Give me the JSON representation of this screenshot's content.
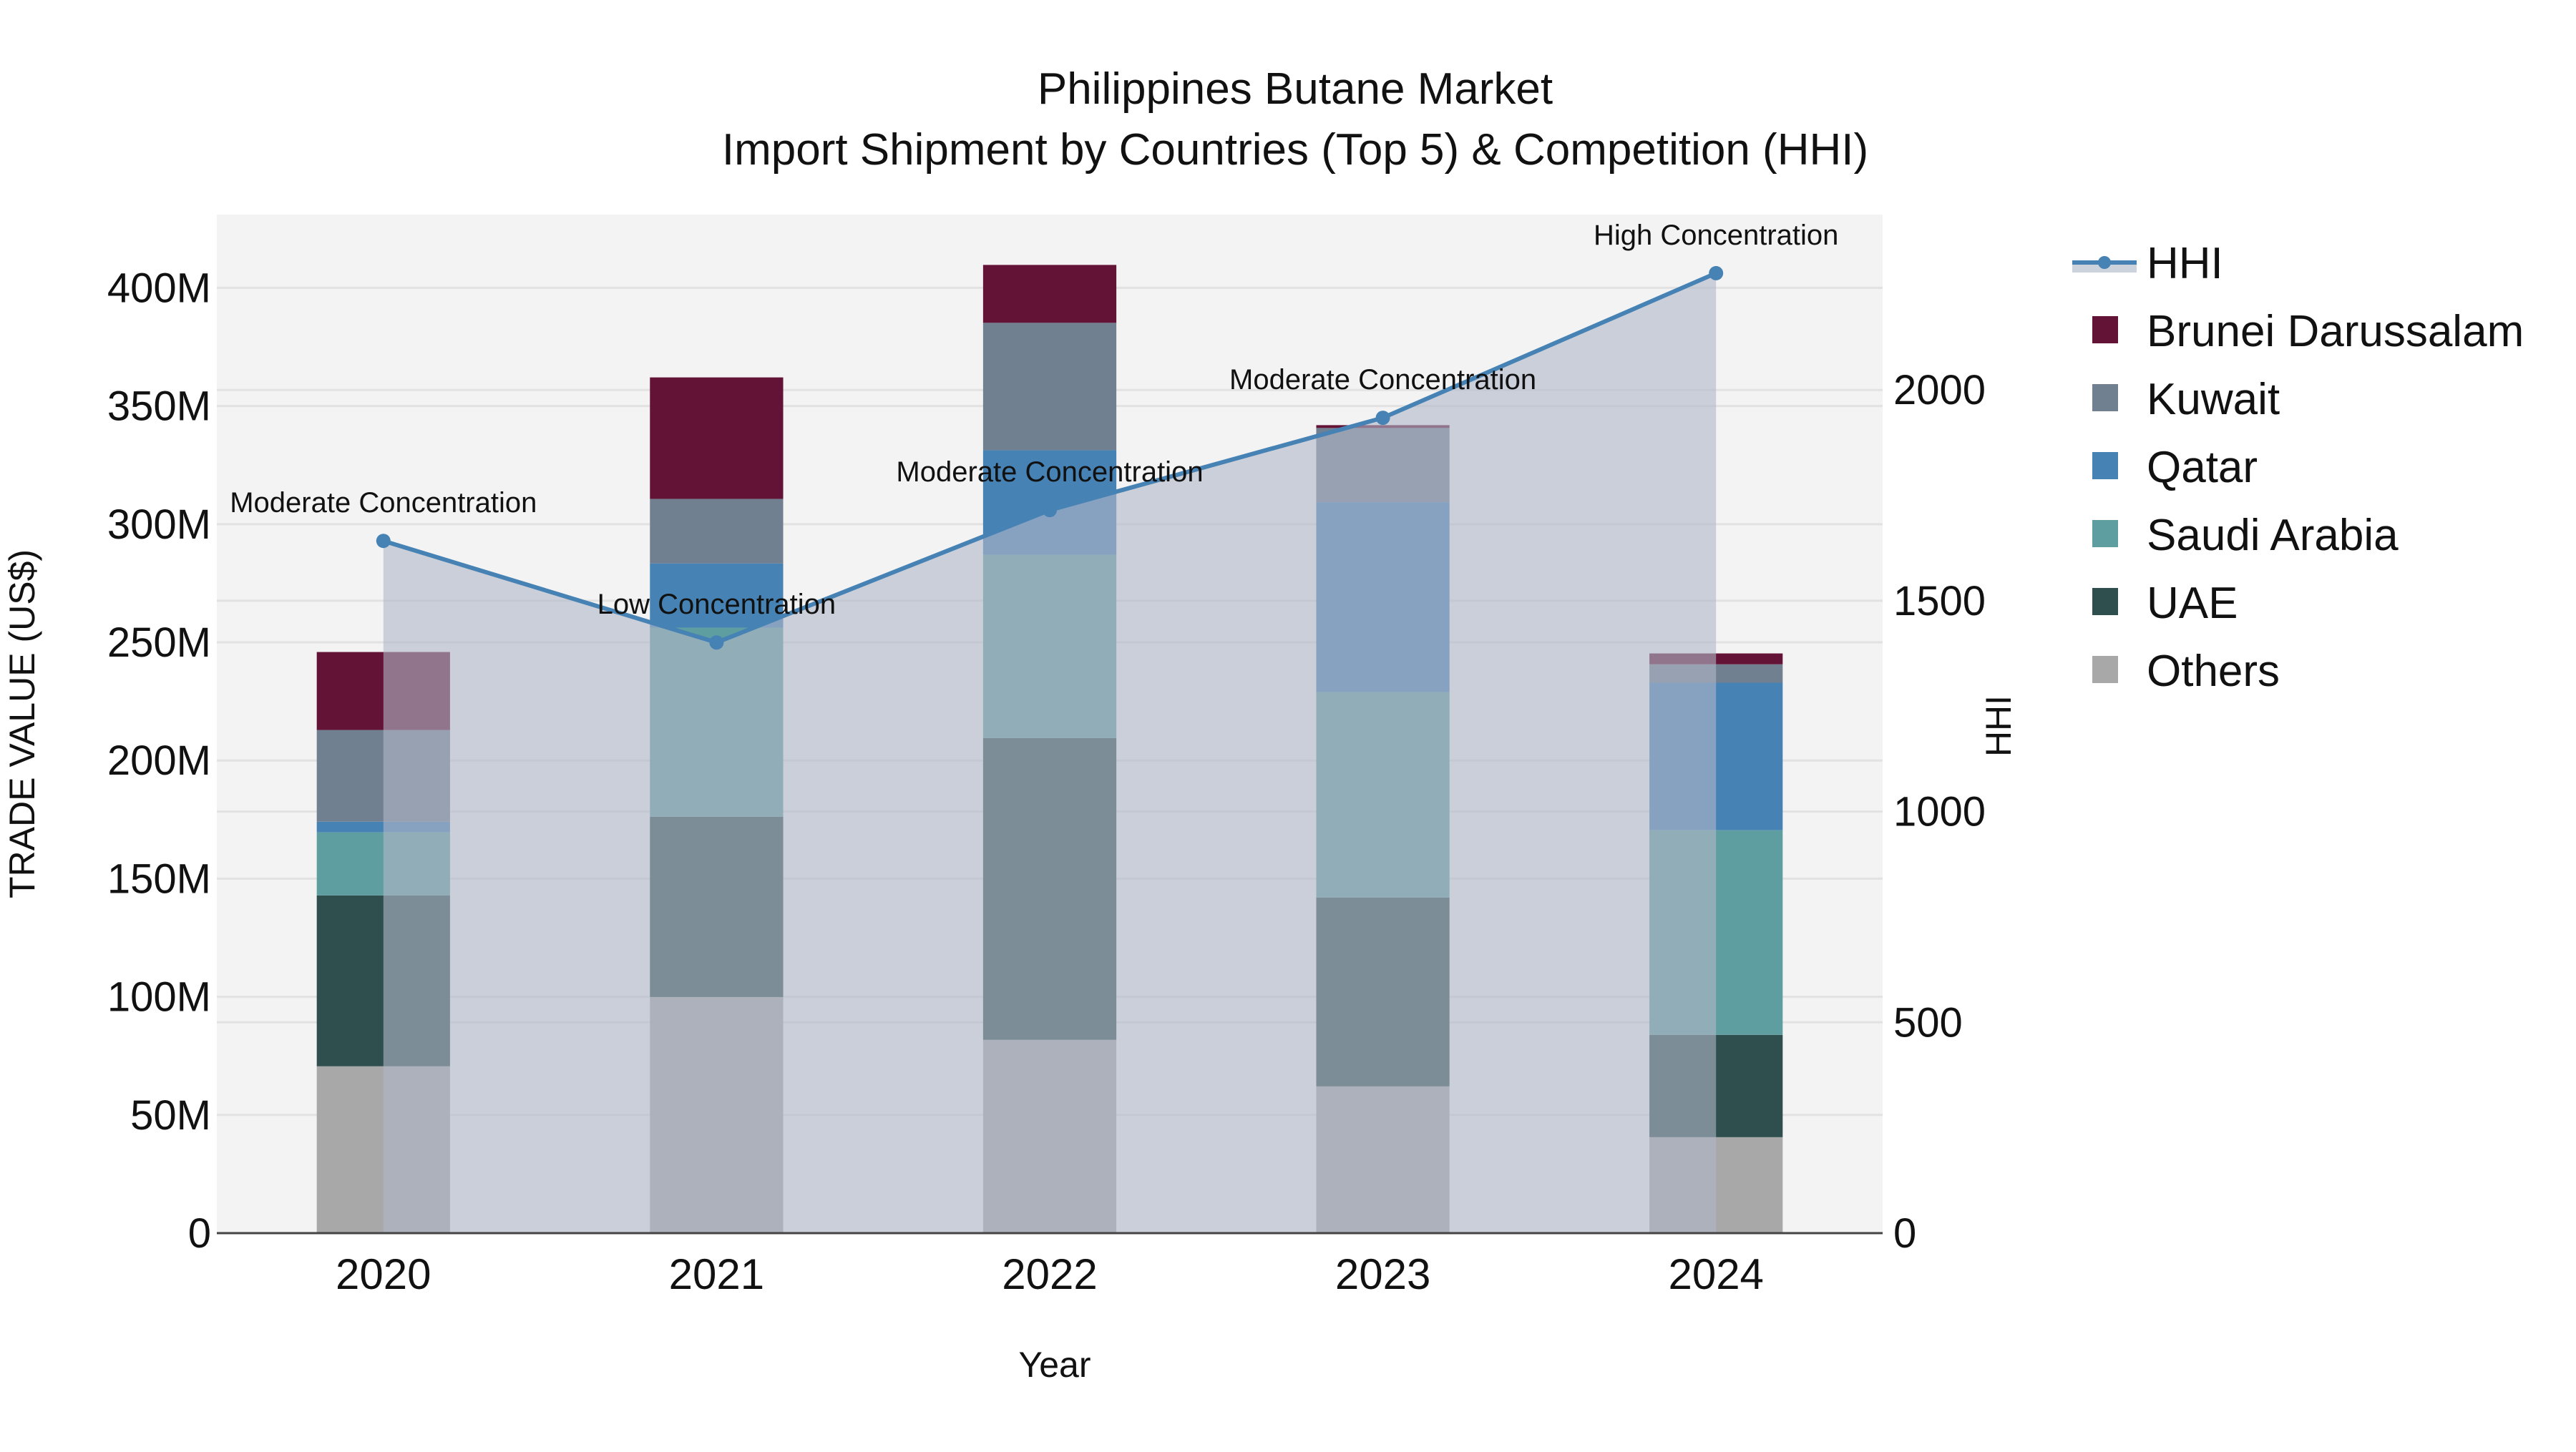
{
  "chart_data": {
    "type": "bar",
    "subtype": "stacked bar with line+area overlay (dual axis)",
    "title": "Philippines Butane Market",
    "subtitle": "Import Shipment by Countries (Top 5) & Competition (HHI)",
    "xlabel": "Year",
    "ylabel": "TRADE VALUE (US$)",
    "y2label": "HHI",
    "categories": [
      "2020",
      "2021",
      "2022",
      "2023",
      "2024"
    ],
    "ylim": [
      0,
      431000000
    ],
    "y_ticks": [
      0,
      50000000,
      100000000,
      150000000,
      200000000,
      250000000,
      300000000,
      350000000,
      400000000
    ],
    "y_tick_labels": [
      "0",
      "50M",
      "100M",
      "150M",
      "200M",
      "250M",
      "300M",
      "350M",
      "400M"
    ],
    "y2lim": [
      0,
      2416
    ],
    "y2_ticks": [
      0,
      500,
      1000,
      1500,
      2000
    ],
    "y2_tick_labels": [
      "0",
      "500",
      "1000",
      "1500",
      "2000"
    ],
    "grid": true,
    "legend_position": "right",
    "series": [
      {
        "name": "Others",
        "color": "#a8a8a8",
        "values": [
          70600000,
          99900000,
          81800000,
          62100000,
          40600000
        ]
      },
      {
        "name": "UAE",
        "color": "#2f4f4f",
        "values": [
          72300000,
          76300000,
          127700000,
          79900000,
          43300000
        ]
      },
      {
        "name": "Saudi Arabia",
        "color": "#5f9ea0",
        "values": [
          26700000,
          80000000,
          77600000,
          86900000,
          86600000
        ]
      },
      {
        "name": "Qatar",
        "color": "#4682b4",
        "values": [
          4500000,
          27200000,
          44200000,
          80400000,
          62400000
        ]
      },
      {
        "name": "Kuwait",
        "color": "#708090",
        "values": [
          38800000,
          27300000,
          53900000,
          31400000,
          7800000
        ]
      },
      {
        "name": "Brunei Darussalam",
        "color": "#621336",
        "values": [
          33000000,
          51400000,
          24500000,
          1200000,
          4600000
        ]
      }
    ],
    "totals": [
      245900000,
      362100000,
      409700000,
      341900000,
      245300000
    ],
    "line_series": {
      "name": "HHI",
      "axis": "y2",
      "color": "#4682b4",
      "fill_color": "rgba(176,184,200,0.6)",
      "values": [
        1642,
        1401,
        1715,
        1934,
        2277
      ]
    },
    "annotations": [
      {
        "x": "2020",
        "text": "Moderate Concentration"
      },
      {
        "x": "2021",
        "text": "Low Concentration"
      },
      {
        "x": "2022",
        "text": "Moderate Concentration"
      },
      {
        "x": "2023",
        "text": "Moderate Concentration"
      },
      {
        "x": "2024",
        "text": "High Concentration"
      }
    ]
  },
  "legend": {
    "items": [
      {
        "label": "HHI",
        "type": "line",
        "color": "#4682b4"
      },
      {
        "label": "Brunei Darussalam",
        "type": "box",
        "color": "#621336"
      },
      {
        "label": "Kuwait",
        "type": "box",
        "color": "#708090"
      },
      {
        "label": "Qatar",
        "type": "box",
        "color": "#4682b4"
      },
      {
        "label": "Saudi Arabia",
        "type": "box",
        "color": "#5f9ea0"
      },
      {
        "label": "UAE",
        "type": "box",
        "color": "#2f4f4f"
      },
      {
        "label": "Others",
        "type": "box",
        "color": "#a8a8a8"
      }
    ]
  },
  "colors": {
    "plot_bg": "#f3f3f3",
    "grid": "#e2e2e2",
    "axis_line": "#444444",
    "text": "#111111"
  }
}
